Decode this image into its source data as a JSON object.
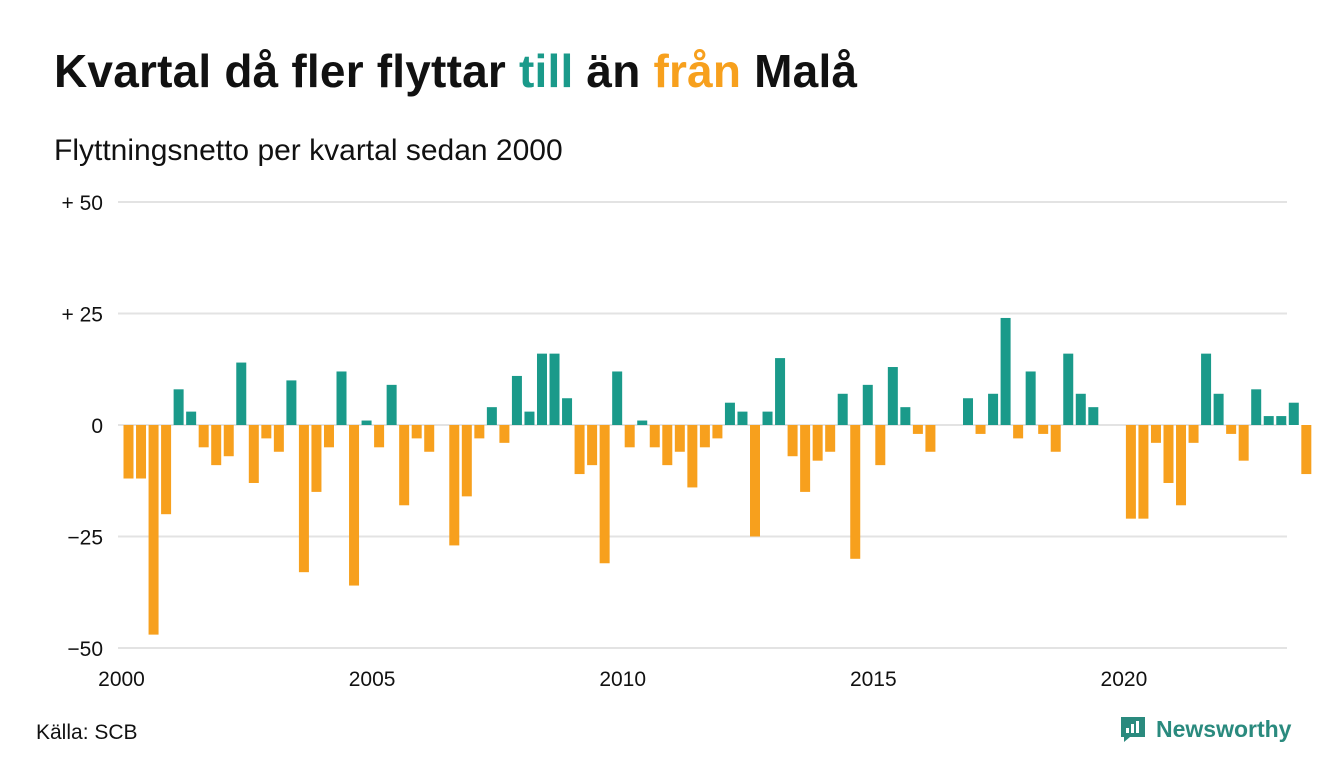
{
  "header": {
    "title_part1": "Kvartal då fler flyttar ",
    "title_till": "till",
    "title_part2": " än ",
    "title_fran": "från",
    "title_part3": " Malå",
    "subtitle": "Flyttningsnetto per kvartal sedan 2000"
  },
  "footer": {
    "source": "Källa: SCB",
    "brand": "Newsworthy",
    "brand_icon": "newsworthy-logo-icon"
  },
  "colors": {
    "positive": "#1a9a8a",
    "negative": "#f7a01d",
    "grid": "#e3e3e3",
    "brand": "#2a8a7e"
  },
  "chart_data": {
    "type": "bar",
    "title": "Kvartal då fler flyttar till än från Malå",
    "subtitle": "Flyttningsnetto per kvartal sedan 2000",
    "xlabel": "",
    "ylabel": "",
    "ylim": [
      -50,
      50
    ],
    "yticks": [
      {
        "value": 50,
        "label": "+ 50"
      },
      {
        "value": 25,
        "label": "+ 25"
      },
      {
        "value": 0,
        "label": "0"
      },
      {
        "value": -25,
        "label": "−25"
      },
      {
        "value": -50,
        "label": "−50"
      }
    ],
    "xticks": [
      "2000",
      "2005",
      "2010",
      "2015",
      "2020"
    ],
    "start_year": 2000,
    "grid": true,
    "legend": "none",
    "values": [
      -12,
      -12,
      -47,
      -20,
      8,
      3,
      -5,
      -9,
      -7,
      14,
      -13,
      -3,
      -6,
      10,
      -33,
      -15,
      -5,
      12,
      -36,
      1,
      -5,
      9,
      -18,
      -3,
      -6,
      0,
      -27,
      -16,
      -3,
      4,
      -4,
      11,
      3,
      16,
      16,
      6,
      -11,
      -9,
      -31,
      12,
      -5,
      1,
      -5,
      -9,
      -6,
      -14,
      -5,
      -3,
      5,
      3,
      -25,
      3,
      15,
      -7,
      -15,
      -8,
      -6,
      7,
      -30,
      9,
      -9,
      13,
      4,
      -2,
      -6,
      0,
      0,
      6,
      -2,
      7,
      24,
      -3,
      12,
      -2,
      -6,
      16,
      7,
      4,
      0,
      0,
      -21,
      -21,
      -4,
      -13,
      -18,
      -4,
      16,
      7,
      -2,
      -8,
      8,
      2,
      2,
      5,
      -11
    ]
  }
}
